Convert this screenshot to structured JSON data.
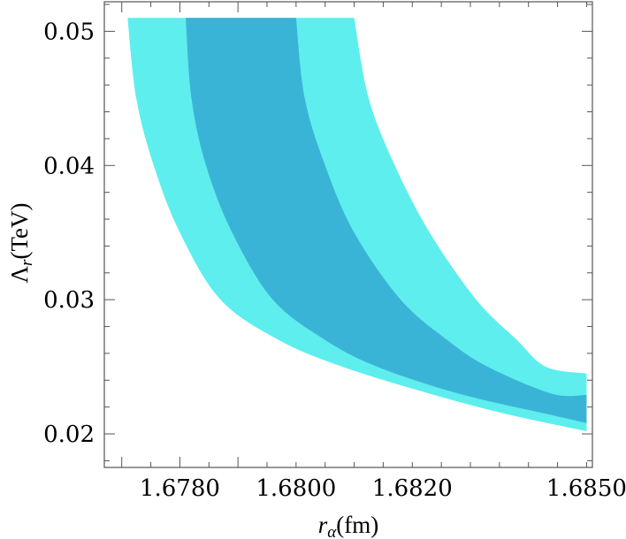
{
  "chart_data": {
    "type": "area",
    "title": "",
    "xlabel": {
      "main": "r",
      "sub": "α",
      "unit": "(fm)"
    },
    "ylabel": {
      "main": "Λ",
      "sub": "r",
      "unit": "(TeV)"
    },
    "xlim": [
      1.6767,
      1.6851
    ],
    "ylim": [
      0.0175,
      0.0522
    ],
    "x_ticks": [
      {
        "value": 1.678,
        "label": "1.6780"
      },
      {
        "value": 1.68,
        "label": "1.6800"
      },
      {
        "value": 1.682,
        "label": "1.6820"
      },
      {
        "value": 1.685,
        "label": "1.6850"
      }
    ],
    "y_ticks": [
      {
        "value": 0.02,
        "label": "0.02"
      },
      {
        "value": 0.03,
        "label": "0.03"
      },
      {
        "value": 0.04,
        "label": "0.04"
      },
      {
        "value": 0.05,
        "label": "0.05"
      }
    ],
    "grid": false,
    "legend": "none",
    "series": [
      {
        "color": "#5eeeee",
        "y": [
          0.051,
          0.045,
          0.04,
          0.035,
          0.03,
          0.027,
          0.025,
          0.023,
          0.0215,
          0.0202
        ],
        "x_lower": [
          1.6771,
          1.67725,
          1.67755,
          1.678,
          1.6787,
          1.6797,
          1.6808,
          1.6823,
          1.6836,
          1.685
        ],
        "x_upper": [
          1.681,
          1.68125,
          1.6817,
          1.6823,
          1.6831,
          1.6838,
          1.6843,
          1.685,
          1.685,
          1.685
        ]
      },
      {
        "color": "#3ab4d6",
        "y": [
          0.051,
          0.045,
          0.04,
          0.035,
          0.03,
          0.027,
          0.025,
          0.023,
          0.0215,
          0.0208
        ],
        "x_lower": [
          1.6781,
          1.6782,
          1.67845,
          1.6789,
          1.6796,
          1.6805,
          1.6814,
          1.6828,
          1.6843,
          1.685
        ],
        "x_upper": [
          1.68,
          1.68015,
          1.6805,
          1.681,
          1.6818,
          1.6826,
          1.6833,
          1.6844,
          1.685,
          1.685
        ]
      }
    ],
    "right_edge": {
      "x": 1.685,
      "outer_band": [
        0.0202,
        0.0245
      ],
      "inner_band": [
        0.0208,
        0.0229
      ]
    }
  }
}
